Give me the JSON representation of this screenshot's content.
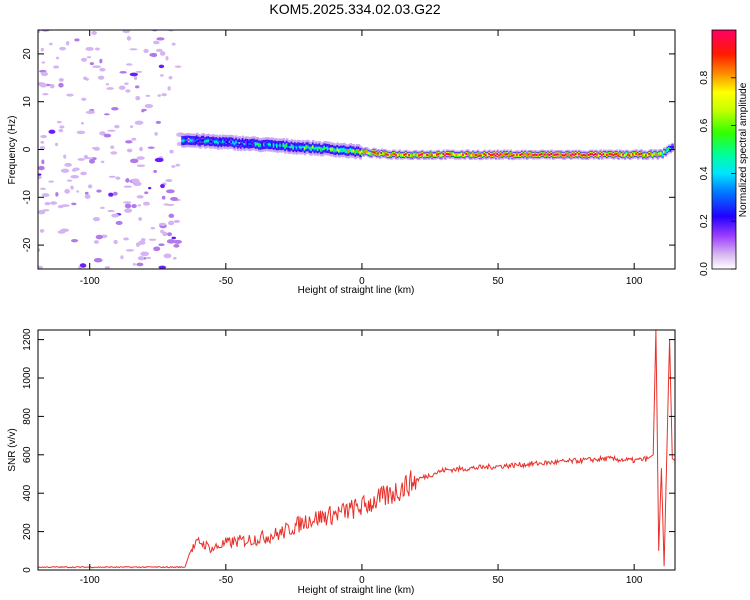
{
  "title": "KOM5.2025.334.02.03.G22",
  "chart_data": [
    {
      "type": "heatmap",
      "title": "KOM5.2025.334.02.03.G22",
      "xlabel": "Height of straight line (km)",
      "ylabel": "Frequency (Hz)",
      "xlim": [
        -119,
        115
      ],
      "ylim": [
        -25,
        25
      ],
      "xticks": [
        -100,
        -50,
        0,
        50,
        100
      ],
      "yticks": [
        -20,
        -10,
        0,
        10,
        20
      ],
      "noise_region_x": [
        -119,
        -66
      ],
      "signal_start_x": -66,
      "signal_trace": {
        "x": [
          -66,
          -50,
          -30,
          -10,
          5,
          8,
          20,
          40,
          60,
          80,
          100,
          110,
          114
        ],
        "freq": [
          2.0,
          1.5,
          0.8,
          0.0,
          -0.8,
          -1.0,
          -1.1,
          -1.1,
          -1.1,
          -1.1,
          -1.1,
          -1.0,
          0.5
        ],
        "amplitude": [
          0.35,
          0.35,
          0.45,
          0.6,
          0.8,
          0.9,
          0.85,
          0.9,
          0.95,
          0.95,
          0.9,
          0.7,
          0.4
        ]
      },
      "colorbar": {
        "label": "Normalized spectral amplitude",
        "range": [
          0.0,
          1.0
        ],
        "ticks": [
          "0.0",
          "0.2",
          "0.4",
          "0.6",
          "0.8"
        ]
      }
    },
    {
      "type": "line",
      "xlabel": "Height of straight line (km)",
      "ylabel": "SNR (v/v)",
      "xlim": [
        -119,
        115
      ],
      "ylim": [
        0,
        1250
      ],
      "xticks": [
        -100,
        -50,
        0,
        50,
        100
      ],
      "yticks": [
        0,
        200,
        400,
        600,
        800,
        1000,
        1200
      ],
      "series": [
        {
          "name": "SNR",
          "color": "#e8302a",
          "x": [
            -119,
            -100,
            -80,
            -65,
            -63,
            -60,
            -55,
            -50,
            -40,
            -30,
            -20,
            -10,
            0,
            10,
            20,
            30,
            40,
            50,
            60,
            70,
            80,
            90,
            100,
            105,
            107,
            108,
            109,
            110,
            111,
            112,
            113,
            114,
            115
          ],
          "y": [
            15,
            15,
            15,
            15,
            100,
            150,
            110,
            140,
            160,
            190,
            260,
            290,
            330,
            390,
            470,
            520,
            530,
            540,
            550,
            560,
            570,
            580,
            570,
            580,
            600,
            1250,
            100,
            530,
            20,
            600,
            1200,
            580,
            570
          ]
        }
      ]
    }
  ],
  "colors": {
    "line": "#e8302a"
  }
}
